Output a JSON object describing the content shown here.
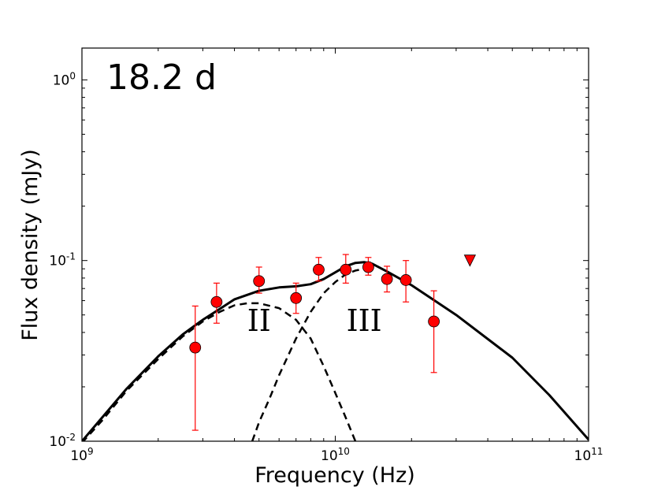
{
  "chart_data": {
    "type": "scatter",
    "title": "18.2 d",
    "xlabel": "Frequency (Hz)",
    "ylabel": "Flux density (mJy)",
    "xscale": "log",
    "yscale": "log",
    "xlim": [
      1000000000.0,
      100000000000.0
    ],
    "ylim": [
      0.01,
      1.5
    ],
    "grid": false,
    "x_ticks": [
      {
        "value": 1000000000.0,
        "base": "10",
        "exp": "9"
      },
      {
        "value": 10000000000.0,
        "base": "10",
        "exp": "10"
      },
      {
        "value": 100000000000.0,
        "base": "10",
        "exp": "11"
      }
    ],
    "y_ticks": [
      {
        "value": 0.01,
        "base": "10",
        "exp": "-2"
      },
      {
        "value": 0.1,
        "base": "10",
        "exp": "-1"
      },
      {
        "value": 1.0,
        "base": "10",
        "exp": "0"
      }
    ],
    "component_labels": [
      {
        "text": "II",
        "x": 5000000000.0,
        "y": 0.047
      },
      {
        "text": "III",
        "x": 13000000000.0,
        "y": 0.047
      }
    ],
    "detections": {
      "color": "#ff0000",
      "points": [
        {
          "x": 2800000000.0,
          "y": 0.033,
          "ylo": 0.0115,
          "yhi": 0.056
        },
        {
          "x": 3400000000.0,
          "y": 0.059,
          "ylo": 0.045,
          "yhi": 0.075
        },
        {
          "x": 5000000000.0,
          "y": 0.077,
          "ylo": 0.066,
          "yhi": 0.092
        },
        {
          "x": 7000000000.0,
          "y": 0.062,
          "ylo": 0.051,
          "yhi": 0.075
        },
        {
          "x": 8600000000.0,
          "y": 0.089,
          "ylo": 0.077,
          "yhi": 0.104
        },
        {
          "x": 11000000000.0,
          "y": 0.089,
          "ylo": 0.075,
          "yhi": 0.108
        },
        {
          "x": 13500000000.0,
          "y": 0.092,
          "ylo": 0.083,
          "yhi": 0.104
        },
        {
          "x": 16000000000.0,
          "y": 0.079,
          "ylo": 0.067,
          "yhi": 0.093
        },
        {
          "x": 19000000000.0,
          "y": 0.078,
          "ylo": 0.059,
          "yhi": 0.1
        },
        {
          "x": 24500000000.0,
          "y": 0.046,
          "ylo": 0.024,
          "yhi": 0.068
        }
      ]
    },
    "upper_limits": {
      "color": "#ff0000",
      "points": [
        {
          "x": 34000000000.0,
          "y": 0.1
        }
      ]
    },
    "series": [
      {
        "style": "solid",
        "x": [
          1000000000.0,
          1200000000.0,
          1500000000.0,
          2000000000.0,
          2500000000.0,
          3000000000.0,
          3500000000.0,
          4000000000.0,
          5000000000.0,
          6000000000.0,
          7000000000.0,
          8000000000.0,
          9000000000.0,
          10000000000.0,
          11000000000.0,
          12000000000.0,
          13000000000.0,
          14000000000.0,
          16000000000.0,
          20000000000.0,
          30000000000.0,
          50000000000.0,
          70000000000.0,
          100000000000.0
        ],
        "y": [
          0.01,
          0.0135,
          0.0195,
          0.0295,
          0.039,
          0.047,
          0.054,
          0.061,
          0.068,
          0.071,
          0.072,
          0.074,
          0.079,
          0.086,
          0.093,
          0.097,
          0.098,
          0.096,
          0.087,
          0.073,
          0.05,
          0.029,
          0.018,
          0.0102
        ]
      },
      {
        "style": "dashed",
        "x": [
          1000000000.0,
          1200000000.0,
          1500000000.0,
          2000000000.0,
          2500000000.0,
          3000000000.0,
          3500000000.0,
          4000000000.0,
          4500000000.0,
          5000000000.0,
          6000000000.0,
          7000000000.0,
          8000000000.0,
          9000000000.0,
          10000000000.0,
          11000000000.0,
          12000000000.0
        ],
        "y": [
          0.0098,
          0.013,
          0.019,
          0.0285,
          0.038,
          0.046,
          0.052,
          0.0565,
          0.058,
          0.058,
          0.0545,
          0.047,
          0.037,
          0.026,
          0.0185,
          0.0135,
          0.01
        ]
      },
      {
        "style": "dashed",
        "x": [
          4700000000.0,
          5000000000.0,
          5500000000.0,
          6000000000.0,
          7000000000.0,
          8000000000.0,
          9000000000.0,
          10000000000.0,
          11000000000.0,
          12000000000.0,
          13000000000.0
        ],
        "y": [
          0.01,
          0.0127,
          0.0172,
          0.0232,
          0.037,
          0.052,
          0.066,
          0.076,
          0.084,
          0.088,
          0.09
        ]
      }
    ]
  }
}
